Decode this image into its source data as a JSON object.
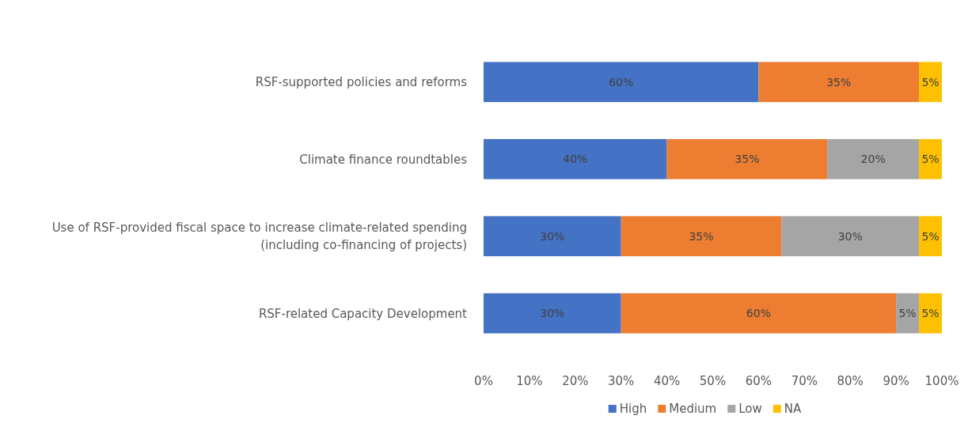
{
  "chart_data": {
    "type": "bar",
    "orientation": "horizontal",
    "stacked": true,
    "legend": "bottom",
    "categories": [
      "RSF-supported policies and reforms",
      "Climate finance roundtables",
      "Use of RSF-provided fiscal space to increase climate-related spending (including co-financing of projects)",
      "RSF-related Capacity Development"
    ],
    "xlim": [
      0,
      100
    ],
    "xticks": [
      {
        "value": 0,
        "label": "0%"
      },
      {
        "value": 10,
        "label": "10%"
      },
      {
        "value": 20,
        "label": "20%"
      },
      {
        "value": 30,
        "label": "30%"
      },
      {
        "value": 40,
        "label": "40%"
      },
      {
        "value": 50,
        "label": "50%"
      },
      {
        "value": 60,
        "label": "60%"
      },
      {
        "value": 70,
        "label": "70%"
      },
      {
        "value": 80,
        "label": "80%"
      },
      {
        "value": 90,
        "label": "90%"
      },
      {
        "value": 100,
        "label": "100%"
      }
    ],
    "series": [
      {
        "name": "High",
        "color": "#4472c4",
        "values": [
          60,
          40,
          30,
          30
        ],
        "value_labels": [
          "60%",
          "40%",
          "30%",
          "30%"
        ]
      },
      {
        "name": "Medium",
        "color": "#ed7d31",
        "values": [
          35,
          35,
          35,
          60
        ],
        "value_labels": [
          "35%",
          "35%",
          "35%",
          "60%"
        ]
      },
      {
        "name": "Low",
        "color": "#a5a5a5",
        "values": [
          0,
          20,
          30,
          5
        ],
        "value_labels": [
          null,
          "20%",
          "30%",
          "5%"
        ]
      },
      {
        "name": "NA",
        "color": "#ffc000",
        "values": [
          5,
          5,
          5,
          5
        ],
        "value_labels": [
          "5%",
          "5%",
          "5%",
          "5%"
        ]
      }
    ]
  }
}
